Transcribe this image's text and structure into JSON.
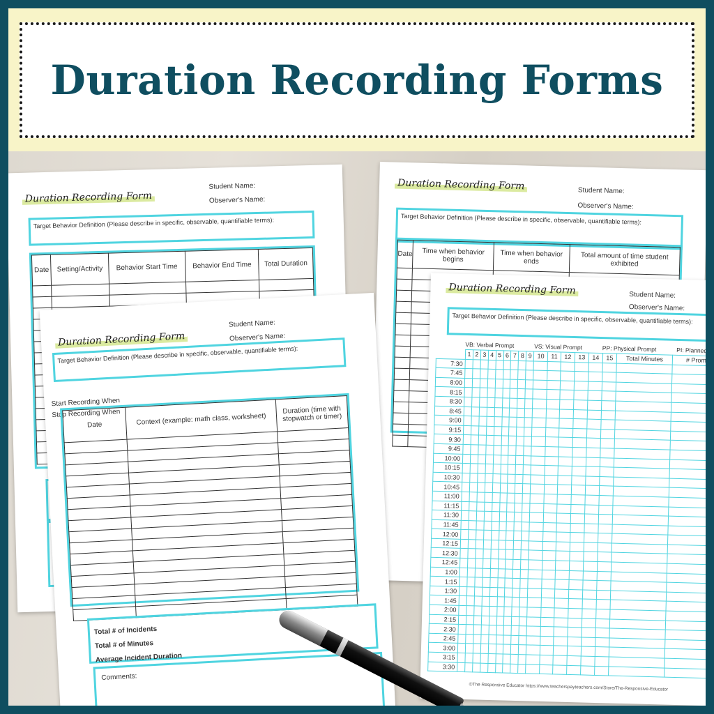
{
  "title": "Duration Recording Forms",
  "form": {
    "title": "Duration Recording Form",
    "student": "Student Name:",
    "observer": "Observer's Name:",
    "target": "Target Behavior Definition (Please describe in specific, observable, quantifiable terms):",
    "incidents": "Total # of Incidents",
    "minutes": "Total # of Minutes",
    "average": "Average Incident Duration",
    "comments": "Comments:",
    "start_when": "Start Recording When",
    "stop_when": "Stop Recording When"
  },
  "form1": {
    "headers": [
      "Date",
      "Setting/Activity",
      "Behavior Start Time",
      "Behavior End Time",
      "Total Duration"
    ]
  },
  "form2": {
    "headers": [
      "Date",
      "Time when behavior begins",
      "Time when behavior ends",
      "Total amount of time student exhibited"
    ]
  },
  "form3": {
    "headers": [
      "Date",
      "Context (example: math class, worksheet)",
      "Duration (time with stopwatch or timer)"
    ]
  },
  "form4": {
    "legend": [
      "VB: Verbal Prompt",
      "VS: Visual Prompt",
      "PP: Physical Prompt",
      "PI: Planned Ignoring"
    ],
    "columns": [
      "1",
      "2",
      "3",
      "4",
      "5",
      "6",
      "7",
      "8",
      "9",
      "10",
      "11",
      "12",
      "13",
      "14",
      "15",
      "Total Minutes",
      "# Prompts"
    ],
    "times": [
      "7:30",
      "7:45",
      "8:00",
      "8:15",
      "8:30",
      "8:45",
      "9:00",
      "9:15",
      "9:30",
      "9:45",
      "10:00",
      "10:15",
      "10:30",
      "10:45",
      "11:00",
      "11:15",
      "11:30",
      "11:45",
      "12:00",
      "12:15",
      "12:30",
      "12:45",
      "1:00",
      "1:15",
      "1:30",
      "1:45",
      "2:00",
      "2:15",
      "2:30",
      "2:45",
      "3:00",
      "3:15",
      "3:30"
    ],
    "footer": "©The Responsive Educator https://www.teacherspayteachers.com/Store/The-Responsive-Educator"
  },
  "colors": {
    "border": "#0f4e60",
    "banner": "#f8f4c8",
    "accent": "#4fd4e0",
    "title": "#0f4e60"
  }
}
